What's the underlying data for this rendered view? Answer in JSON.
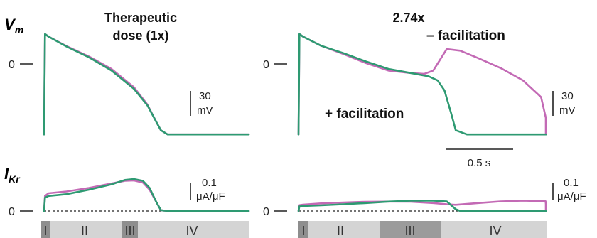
{
  "colors": {
    "with_facilitation": "#2e9a72",
    "without_facilitation": "#c36ab5",
    "phase_light": "#d4d4d4",
    "phase_mid": "#a9a9a9",
    "phase_dark": "#8e8e8e",
    "phase_darker": "#9b9b9b"
  },
  "panels": [
    {
      "title_line1": "Therapeutic",
      "title_line2": "dose (1x)"
    },
    {
      "title_line1": "2.74x",
      "annotation_minus": "– facilitation",
      "annotation_plus": "+ facilitation"
    }
  ],
  "row_labels": {
    "vm_main": "V",
    "vm_sub": "m",
    "ikr_main": "I",
    "ikr_sub": "Kr"
  },
  "zero_label": "0",
  "scale_bars": {
    "vm_value": "30",
    "vm_unit": "mV",
    "ikr_value": "0.1",
    "ikr_unit": "μA/μF",
    "time": "0.5 s"
  },
  "chart_data": [
    {
      "type": "line",
      "panel": "vm-therapeutic",
      "title": "Therapeutic dose (1x)",
      "x_unit": "s",
      "y_unit": "mV",
      "series": [
        {
          "key": "with",
          "x": [
            0.0,
            0.004,
            0.02,
            0.1,
            0.2,
            0.3,
            0.4,
            0.46,
            0.5,
            0.52,
            0.55,
            0.6,
            1.2
          ],
          "y": [
            -85,
            36,
            33,
            21,
            8,
            -8,
            -30,
            -50,
            -70,
            -80,
            -85,
            -85,
            -85
          ]
        },
        {
          "key": "without",
          "x": [
            0.0,
            0.004,
            0.02,
            0.1,
            0.2,
            0.3,
            0.4,
            0.46,
            0.5,
            0.52,
            0.55,
            0.6,
            1.2
          ],
          "y": [
            -85,
            36,
            33,
            21.5,
            9,
            -6,
            -28,
            -49,
            -70,
            -80,
            -85,
            -85,
            -85
          ]
        }
      ]
    },
    {
      "type": "line",
      "panel": "vm-274x",
      "title": "2.74x",
      "x_unit": "s",
      "y_unit": "mV",
      "series": [
        {
          "key": "with",
          "x": [
            0.0,
            0.004,
            0.02,
            0.1,
            0.2,
            0.3,
            0.4,
            0.5,
            0.58,
            0.62,
            0.65,
            0.68,
            0.7,
            0.75,
            1.2
          ],
          "y": [
            -85,
            36,
            33,
            22,
            13,
            3,
            -6,
            -11,
            -15,
            -20,
            -32,
            -60,
            -80,
            -85,
            -85
          ]
        },
        {
          "key": "without",
          "x": [
            0.0,
            0.004,
            0.02,
            0.1,
            0.2,
            0.3,
            0.4,
            0.5,
            0.56,
            0.6,
            0.63,
            0.66,
            0.72,
            0.8,
            0.9,
            1.0,
            1.08,
            1.12,
            1.16,
            1.2
          ],
          "y": [
            -85,
            36,
            33,
            22,
            12,
            1,
            -8,
            -11,
            -12,
            -8,
            5,
            18,
            16,
            7,
            -5,
            -20,
            -40,
            -65,
            -85,
            -85
          ]
        }
      ]
    },
    {
      "type": "line",
      "panel": "ikr-therapeutic",
      "x_unit": "s",
      "y_unit": "μA/μF",
      "series": [
        {
          "key": "with",
          "x": [
            0.0,
            0.004,
            0.02,
            0.1,
            0.2,
            0.3,
            0.36,
            0.4,
            0.44,
            0.47,
            0.5,
            0.52,
            0.55,
            1.2
          ],
          "y": [
            0,
            0.075,
            0.085,
            0.095,
            0.12,
            0.15,
            0.175,
            0.18,
            0.17,
            0.13,
            0.05,
            0.005,
            0,
            0
          ]
        },
        {
          "key": "without",
          "x": [
            0.0,
            0.004,
            0.02,
            0.1,
            0.2,
            0.3,
            0.36,
            0.4,
            0.44,
            0.47,
            0.5,
            0.52,
            0.55,
            1.2
          ],
          "y": [
            0,
            0.085,
            0.1,
            0.11,
            0.13,
            0.155,
            0.17,
            0.172,
            0.16,
            0.12,
            0.05,
            0.005,
            0,
            0
          ]
        }
      ]
    },
    {
      "type": "line",
      "panel": "ikr-274x",
      "x_unit": "s",
      "y_unit": "μA/μF",
      "series": [
        {
          "key": "with",
          "x": [
            0.0,
            0.004,
            0.02,
            0.1,
            0.2,
            0.3,
            0.4,
            0.5,
            0.6,
            0.66,
            0.7,
            0.72,
            0.75,
            1.2
          ],
          "y": [
            0,
            0.026,
            0.028,
            0.032,
            0.038,
            0.045,
            0.053,
            0.058,
            0.058,
            0.054,
            0.01,
            0,
            0,
            0
          ]
        },
        {
          "key": "without",
          "x": [
            0.0,
            0.004,
            0.02,
            0.1,
            0.2,
            0.3,
            0.4,
            0.5,
            0.6,
            0.66,
            0.7,
            0.8,
            0.9,
            1.0,
            1.1,
            1.14,
            1.16,
            1.2
          ],
          "y": [
            0,
            0.033,
            0.036,
            0.043,
            0.048,
            0.052,
            0.053,
            0.052,
            0.045,
            0.038,
            0.035,
            0.045,
            0.054,
            0.058,
            0.055,
            0.04,
            0,
            0
          ]
        }
      ]
    }
  ],
  "phases": [
    {
      "panel": 0,
      "segments": [
        {
          "label": "I",
          "shade": "phase_dark"
        },
        {
          "label": "II",
          "shade": "phase_light"
        },
        {
          "label": "III",
          "shade": "phase_dark"
        },
        {
          "label": "IV",
          "shade": "phase_light"
        }
      ]
    },
    {
      "panel": 1,
      "segments": [
        {
          "label": "I",
          "shade": "phase_dark"
        },
        {
          "label": "II",
          "shade": "phase_light"
        },
        {
          "label": "III",
          "shade": "phase_darker"
        },
        {
          "label": "IV",
          "shade": "phase_light"
        }
      ]
    }
  ]
}
